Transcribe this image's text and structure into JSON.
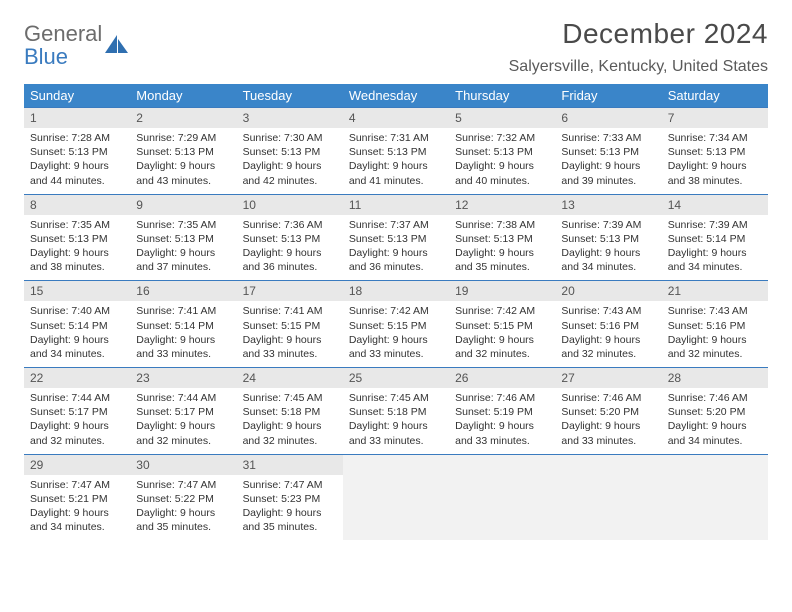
{
  "brand": {
    "line1": "General",
    "line2": "Blue"
  },
  "title": "December 2024",
  "location": "Salyersville, Kentucky, United States",
  "colors": {
    "header_bg": "#3a85c9",
    "header_text": "#ffffff",
    "row_border": "#3a7bbf",
    "daynum_bg": "#e8e8e8",
    "empty_bg": "#f2f2f2",
    "brand_gray": "#6c6c6c",
    "brand_blue": "#3a7bbf"
  },
  "weekdays": [
    "Sunday",
    "Monday",
    "Tuesday",
    "Wednesday",
    "Thursday",
    "Friday",
    "Saturday"
  ],
  "days": [
    {
      "n": "1",
      "sr": "7:28 AM",
      "ss": "5:13 PM",
      "dl": "9 hours and 44 minutes."
    },
    {
      "n": "2",
      "sr": "7:29 AM",
      "ss": "5:13 PM",
      "dl": "9 hours and 43 minutes."
    },
    {
      "n": "3",
      "sr": "7:30 AM",
      "ss": "5:13 PM",
      "dl": "9 hours and 42 minutes."
    },
    {
      "n": "4",
      "sr": "7:31 AM",
      "ss": "5:13 PM",
      "dl": "9 hours and 41 minutes."
    },
    {
      "n": "5",
      "sr": "7:32 AM",
      "ss": "5:13 PM",
      "dl": "9 hours and 40 minutes."
    },
    {
      "n": "6",
      "sr": "7:33 AM",
      "ss": "5:13 PM",
      "dl": "9 hours and 39 minutes."
    },
    {
      "n": "7",
      "sr": "7:34 AM",
      "ss": "5:13 PM",
      "dl": "9 hours and 38 minutes."
    },
    {
      "n": "8",
      "sr": "7:35 AM",
      "ss": "5:13 PM",
      "dl": "9 hours and 38 minutes."
    },
    {
      "n": "9",
      "sr": "7:35 AM",
      "ss": "5:13 PM",
      "dl": "9 hours and 37 minutes."
    },
    {
      "n": "10",
      "sr": "7:36 AM",
      "ss": "5:13 PM",
      "dl": "9 hours and 36 minutes."
    },
    {
      "n": "11",
      "sr": "7:37 AM",
      "ss": "5:13 PM",
      "dl": "9 hours and 36 minutes."
    },
    {
      "n": "12",
      "sr": "7:38 AM",
      "ss": "5:13 PM",
      "dl": "9 hours and 35 minutes."
    },
    {
      "n": "13",
      "sr": "7:39 AM",
      "ss": "5:13 PM",
      "dl": "9 hours and 34 minutes."
    },
    {
      "n": "14",
      "sr": "7:39 AM",
      "ss": "5:14 PM",
      "dl": "9 hours and 34 minutes."
    },
    {
      "n": "15",
      "sr": "7:40 AM",
      "ss": "5:14 PM",
      "dl": "9 hours and 34 minutes."
    },
    {
      "n": "16",
      "sr": "7:41 AM",
      "ss": "5:14 PM",
      "dl": "9 hours and 33 minutes."
    },
    {
      "n": "17",
      "sr": "7:41 AM",
      "ss": "5:15 PM",
      "dl": "9 hours and 33 minutes."
    },
    {
      "n": "18",
      "sr": "7:42 AM",
      "ss": "5:15 PM",
      "dl": "9 hours and 33 minutes."
    },
    {
      "n": "19",
      "sr": "7:42 AM",
      "ss": "5:15 PM",
      "dl": "9 hours and 32 minutes."
    },
    {
      "n": "20",
      "sr": "7:43 AM",
      "ss": "5:16 PM",
      "dl": "9 hours and 32 minutes."
    },
    {
      "n": "21",
      "sr": "7:43 AM",
      "ss": "5:16 PM",
      "dl": "9 hours and 32 minutes."
    },
    {
      "n": "22",
      "sr": "7:44 AM",
      "ss": "5:17 PM",
      "dl": "9 hours and 32 minutes."
    },
    {
      "n": "23",
      "sr": "7:44 AM",
      "ss": "5:17 PM",
      "dl": "9 hours and 32 minutes."
    },
    {
      "n": "24",
      "sr": "7:45 AM",
      "ss": "5:18 PM",
      "dl": "9 hours and 32 minutes."
    },
    {
      "n": "25",
      "sr": "7:45 AM",
      "ss": "5:18 PM",
      "dl": "9 hours and 33 minutes."
    },
    {
      "n": "26",
      "sr": "7:46 AM",
      "ss": "5:19 PM",
      "dl": "9 hours and 33 minutes."
    },
    {
      "n": "27",
      "sr": "7:46 AM",
      "ss": "5:20 PM",
      "dl": "9 hours and 33 minutes."
    },
    {
      "n": "28",
      "sr": "7:46 AM",
      "ss": "5:20 PM",
      "dl": "9 hours and 34 minutes."
    },
    {
      "n": "29",
      "sr": "7:47 AM",
      "ss": "5:21 PM",
      "dl": "9 hours and 34 minutes."
    },
    {
      "n": "30",
      "sr": "7:47 AM",
      "ss": "5:22 PM",
      "dl": "9 hours and 35 minutes."
    },
    {
      "n": "31",
      "sr": "7:47 AM",
      "ss": "5:23 PM",
      "dl": "9 hours and 35 minutes."
    }
  ],
  "labels": {
    "sunrise": "Sunrise:",
    "sunset": "Sunset:",
    "daylight": "Daylight:"
  }
}
